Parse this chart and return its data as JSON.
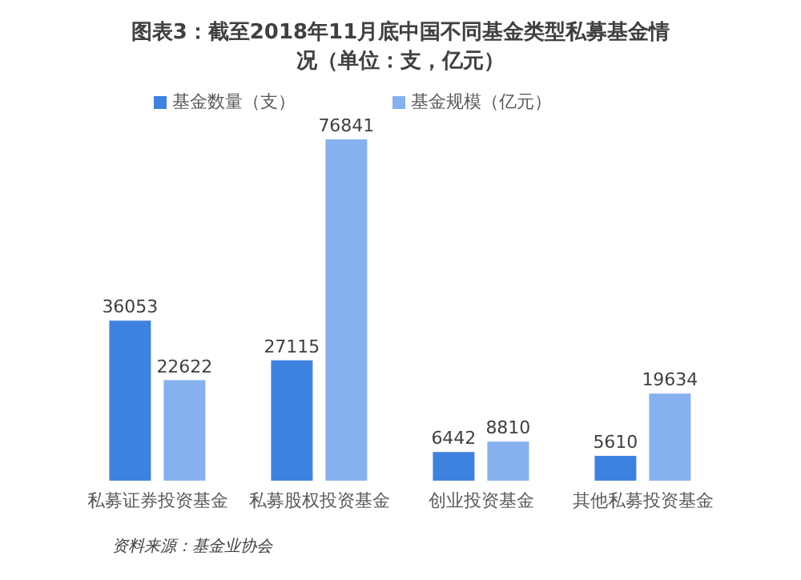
{
  "chart_data": {
    "type": "bar",
    "title": "图表3：截至2018年11月底中国不同基金类型私募基金情况（单位：支，亿元）",
    "categories": [
      "私募证券投资基金",
      "私募股权投资基金",
      "创业投资基金",
      "其他私募投资基金"
    ],
    "series": [
      {
        "name": "基金数量（支）",
        "color": "#3e82df",
        "values": [
          36053,
          27115,
          6442,
          5610
        ]
      },
      {
        "name": "基金规模（亿元）",
        "color": "#86b1ee",
        "values": [
          22622,
          76841,
          8810,
          19634
        ]
      }
    ],
    "data_labels": true,
    "legend": "top",
    "grid": false,
    "annotations": [
      "资料来源：基金业协会"
    ]
  }
}
